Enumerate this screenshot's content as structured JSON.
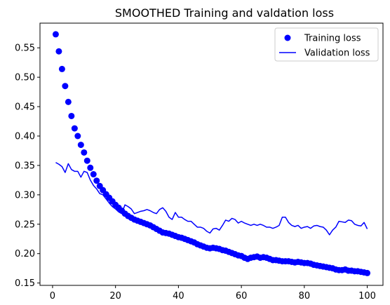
{
  "chart_data": {
    "type": "line",
    "title": "SMOOTHED Training and valdation loss",
    "xlabel": "",
    "ylabel": "",
    "xlim": [
      -4,
      105
    ],
    "ylim": [
      0.146,
      0.592
    ],
    "xticks": [
      0,
      20,
      40,
      60,
      80,
      100
    ],
    "xtick_labels": [
      "0",
      "20",
      "40",
      "60",
      "80",
      "100"
    ],
    "yticks": [
      0.15,
      0.2,
      0.25,
      0.3,
      0.35,
      0.4,
      0.45,
      0.5,
      0.55
    ],
    "ytick_labels": [
      "0.15",
      "0.20",
      "0.25",
      "0.30",
      "0.35",
      "0.40",
      "0.45",
      "0.50",
      "0.55"
    ],
    "grid": false,
    "legend_position": "top-right",
    "color": "#0000ff",
    "x": [
      1,
      2,
      3,
      4,
      5,
      6,
      7,
      8,
      9,
      10,
      11,
      12,
      13,
      14,
      15,
      16,
      17,
      18,
      19,
      20,
      21,
      22,
      23,
      24,
      25,
      26,
      27,
      28,
      29,
      30,
      31,
      32,
      33,
      34,
      35,
      36,
      37,
      38,
      39,
      40,
      41,
      42,
      43,
      44,
      45,
      46,
      47,
      48,
      49,
      50,
      51,
      52,
      53,
      54,
      55,
      56,
      57,
      58,
      59,
      60,
      61,
      62,
      63,
      64,
      65,
      66,
      67,
      68,
      69,
      70,
      71,
      72,
      73,
      74,
      75,
      76,
      77,
      78,
      79,
      80,
      81,
      82,
      83,
      84,
      85,
      86,
      87,
      88,
      89,
      90,
      91,
      92,
      93,
      94,
      95,
      96,
      97,
      98,
      99,
      100
    ],
    "series": [
      {
        "name": "Training loss",
        "style": "markers",
        "values": [
          0.573,
          0.544,
          0.514,
          0.485,
          0.458,
          0.434,
          0.413,
          0.4,
          0.385,
          0.372,
          0.358,
          0.346,
          0.335,
          0.324,
          0.315,
          0.308,
          0.301,
          0.295,
          0.289,
          0.283,
          0.278,
          0.273,
          0.268,
          0.264,
          0.261,
          0.258,
          0.256,
          0.254,
          0.252,
          0.25,
          0.248,
          0.245,
          0.242,
          0.239,
          0.236,
          0.235,
          0.234,
          0.232,
          0.23,
          0.228,
          0.227,
          0.225,
          0.223,
          0.221,
          0.219,
          0.216,
          0.214,
          0.212,
          0.21,
          0.209,
          0.21,
          0.209,
          0.208,
          0.206,
          0.205,
          0.203,
          0.201,
          0.199,
          0.197,
          0.196,
          0.193,
          0.191,
          0.193,
          0.194,
          0.195,
          0.193,
          0.194,
          0.193,
          0.191,
          0.189,
          0.189,
          0.188,
          0.187,
          0.187,
          0.187,
          0.186,
          0.185,
          0.186,
          0.185,
          0.184,
          0.184,
          0.183,
          0.181,
          0.18,
          0.179,
          0.178,
          0.177,
          0.176,
          0.175,
          0.173,
          0.172,
          0.172,
          0.173,
          0.171,
          0.171,
          0.17,
          0.17,
          0.169,
          0.168,
          0.167
        ]
      },
      {
        "name": "Validation loss",
        "style": "line",
        "values": [
          0.355,
          0.352,
          0.348,
          0.338,
          0.353,
          0.343,
          0.34,
          0.34,
          0.33,
          0.34,
          0.338,
          0.325,
          0.316,
          0.31,
          0.302,
          0.3,
          0.293,
          0.286,
          0.28,
          0.276,
          0.271,
          0.268,
          0.283,
          0.28,
          0.276,
          0.268,
          0.27,
          0.272,
          0.273,
          0.275,
          0.273,
          0.27,
          0.268,
          0.275,
          0.278,
          0.272,
          0.262,
          0.258,
          0.27,
          0.262,
          0.262,
          0.258,
          0.255,
          0.255,
          0.25,
          0.245,
          0.245,
          0.243,
          0.238,
          0.235,
          0.242,
          0.243,
          0.24,
          0.248,
          0.257,
          0.255,
          0.26,
          0.258,
          0.252,
          0.255,
          0.252,
          0.25,
          0.248,
          0.25,
          0.248,
          0.25,
          0.248,
          0.245,
          0.245,
          0.243,
          0.245,
          0.248,
          0.262,
          0.262,
          0.253,
          0.248,
          0.246,
          0.248,
          0.243,
          0.245,
          0.246,
          0.243,
          0.247,
          0.248,
          0.246,
          0.245,
          0.24,
          0.232,
          0.24,
          0.245,
          0.255,
          0.254,
          0.253,
          0.257,
          0.256,
          0.25,
          0.248,
          0.247,
          0.253,
          0.242
        ]
      }
    ]
  }
}
